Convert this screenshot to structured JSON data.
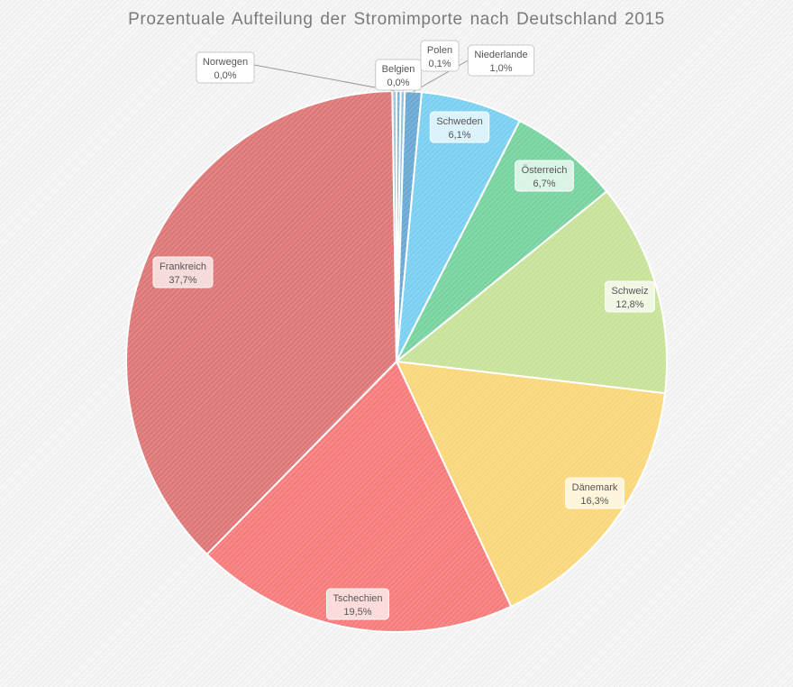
{
  "chart_data": {
    "type": "pie",
    "title": "Prozentuale Aufteilung der Stromimporte nach Deutschland 2015",
    "slices": [
      {
        "name": "Belgien",
        "value": 0.0,
        "label": "0,0%",
        "color": "#7bb3d8"
      },
      {
        "name": "Polen",
        "value": 0.1,
        "label": "0,1%",
        "color": "#8fc0dc"
      },
      {
        "name": "Niederlande",
        "value": 1.0,
        "label": "1,0%",
        "color": "#6aa9d4"
      },
      {
        "name": "Schweden",
        "value": 6.1,
        "label": "6,1%",
        "color": "#7bd0f2"
      },
      {
        "name": "Österreich",
        "value": 6.7,
        "label": "6,7%",
        "color": "#78d3a0"
      },
      {
        "name": "Schweiz",
        "value": 12.8,
        "label": "12,8%",
        "color": "#c8e29a"
      },
      {
        "name": "Dänemark",
        "value": 16.3,
        "label": "16,3%",
        "color": "#fad77a"
      },
      {
        "name": "Tschechien",
        "value": 19.5,
        "label": "19,5%",
        "color": "#f77c7c"
      },
      {
        "name": "Frankreich",
        "value": 37.7,
        "label": "37,7%",
        "color": "#de7878"
      },
      {
        "name": "Norwegen",
        "value": 0.0,
        "label": "0,0%",
        "color": "#9fc4de"
      }
    ]
  }
}
